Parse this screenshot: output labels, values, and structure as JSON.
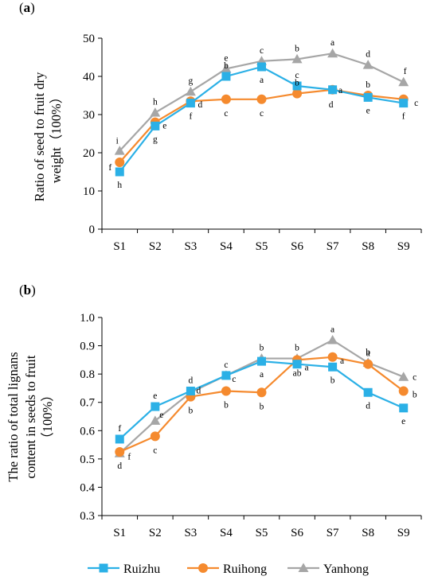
{
  "colors": {
    "Ruizhu": "#2bb0e6",
    "Ruihong": "#f58a2e",
    "Yanhong": "#a6a6a6",
    "axis": "#000000"
  },
  "legend": {
    "entries": [
      {
        "name": "Ruizhu",
        "marker": "square"
      },
      {
        "name": "Ruihong",
        "marker": "circle"
      },
      {
        "name": "Yanhong",
        "marker": "triangle"
      }
    ]
  },
  "chart_data": [
    {
      "panel": "(a)",
      "type": "line",
      "ylabel_lines": [
        "Ratio of seed to fruit dry",
        "weight（100%）"
      ],
      "categories": [
        "S1",
        "S2",
        "S3",
        "S4",
        "S5",
        "S6",
        "S7",
        "S8",
        "S9"
      ],
      "ylim": [
        0,
        50
      ],
      "yticks": [
        0,
        10,
        20,
        30,
        40,
        50
      ],
      "ytick_labels": [
        "0",
        "10",
        "20",
        "30",
        "40",
        "50"
      ],
      "grid": false,
      "series": [
        {
          "name": "Ruizhu",
          "marker": "square",
          "values": [
            15.0,
            27.0,
            33.0,
            40.0,
            42.5,
            37.5,
            36.5,
            34.5,
            33.0
          ],
          "labels": [
            "h",
            "g",
            "f",
            "b",
            "a",
            "c",
            "d",
            "e",
            "f"
          ]
        },
        {
          "name": "Ruihong",
          "marker": "circle",
          "values": [
            17.5,
            28.0,
            33.5,
            34.0,
            34.0,
            35.5,
            36.5,
            35.0,
            34.0
          ],
          "labels": [
            "f",
            "e",
            "d",
            "c",
            "c",
            "b",
            "a",
            "b",
            "c"
          ]
        },
        {
          "name": "Yanhong",
          "marker": "triangle",
          "values": [
            20.5,
            30.5,
            36.0,
            42.0,
            44.0,
            44.5,
            46.0,
            43.0,
            38.5
          ],
          "labels": [
            "i",
            "h",
            "g",
            "e",
            "c",
            "b",
            "a",
            "d",
            "f"
          ]
        }
      ]
    },
    {
      "panel": "(b)",
      "type": "line",
      "ylabel_lines": [
        "The ratio of total lignans",
        "content in seeds to fruit",
        "（100%）"
      ],
      "categories": [
        "S1",
        "S2",
        "S3",
        "S4",
        "S5",
        "S6",
        "S7",
        "S8",
        "S9"
      ],
      "ylim": [
        0.3,
        1.0
      ],
      "yticks": [
        0.3,
        0.4,
        0.5,
        0.6,
        0.7,
        0.8,
        0.9,
        1.0
      ],
      "ytick_labels": [
        "0.3",
        "0.4",
        "0.5",
        "0.6",
        "0.7",
        "0.8",
        "0.9",
        "1.0"
      ],
      "grid": false,
      "series": [
        {
          "name": "Ruizhu",
          "marker": "square",
          "values": [
            0.57,
            0.685,
            0.74,
            0.795,
            0.845,
            0.835,
            0.825,
            0.735,
            0.68
          ],
          "labels": [
            "f",
            "e",
            "d",
            "c",
            "a",
            "a",
            "b",
            "d",
            "e"
          ]
        },
        {
          "name": "Ruihong",
          "marker": "circle",
          "values": [
            0.525,
            0.58,
            0.72,
            0.74,
            0.735,
            0.85,
            0.86,
            0.835,
            0.74
          ],
          "labels": [
            "d",
            "c",
            "b",
            "b",
            "b",
            "ab",
            "a",
            "a",
            "b"
          ]
        },
        {
          "name": "Yanhong",
          "marker": "triangle",
          "values": [
            0.52,
            0.635,
            0.735,
            0.795,
            0.855,
            0.855,
            0.92,
            0.84,
            0.79
          ],
          "labels": [
            "f",
            "e",
            "d",
            "c",
            "b",
            "b",
            "a",
            "b",
            "c"
          ]
        }
      ]
    }
  ]
}
